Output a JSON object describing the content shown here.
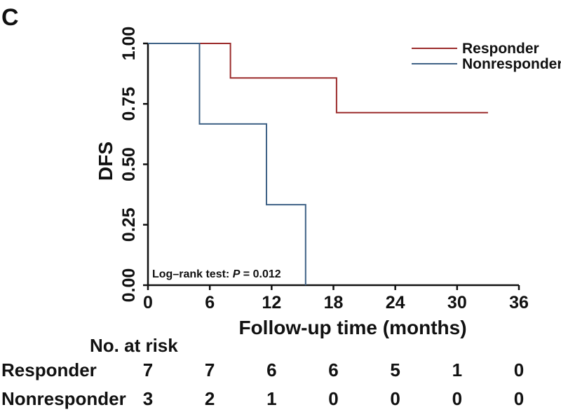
{
  "chart_data": {
    "type": "line",
    "panel_label": "C",
    "xlabel": "Follow-up time (months)",
    "ylabel": "DFS",
    "xlim": [
      0,
      36
    ],
    "ylim": [
      0,
      1
    ],
    "x_ticks": [
      "0",
      "6",
      "12",
      "18",
      "24",
      "30",
      "36"
    ],
    "y_ticks": [
      "0.00",
      "0.25",
      "0.50",
      "0.75",
      "1.00"
    ],
    "grid": false,
    "legend_position": "top-right",
    "series": [
      {
        "name": "Responder",
        "color": "#9b2b2b",
        "points": [
          [
            0,
            1.0
          ],
          [
            8,
            1.0
          ],
          [
            8,
            0.857
          ],
          [
            18.3,
            0.857
          ],
          [
            18.3,
            0.714
          ],
          [
            33,
            0.714
          ]
        ]
      },
      {
        "name": "Nonresponder",
        "color": "#3f6286",
        "points": [
          [
            0,
            1.0
          ],
          [
            5,
            1.0
          ],
          [
            5,
            0.667
          ],
          [
            11.5,
            0.667
          ],
          [
            11.5,
            0.333
          ],
          [
            15.3,
            0.333
          ],
          [
            15.3,
            0.0
          ]
        ]
      }
    ],
    "annotation": {
      "prefix": "Log–rank test: ",
      "italic": "P",
      "suffix": " = 0.012"
    },
    "risk_table": {
      "title": "No. at risk",
      "times": [
        0,
        6,
        12,
        18,
        24,
        30,
        36
      ],
      "rows": [
        {
          "label": "Responder",
          "values": [
            "7",
            "7",
            "6",
            "6",
            "5",
            "1",
            "0"
          ]
        },
        {
          "label": "Nonresponder",
          "values": [
            "3",
            "2",
            "1",
            "0",
            "0",
            "0",
            "0"
          ]
        }
      ]
    }
  }
}
